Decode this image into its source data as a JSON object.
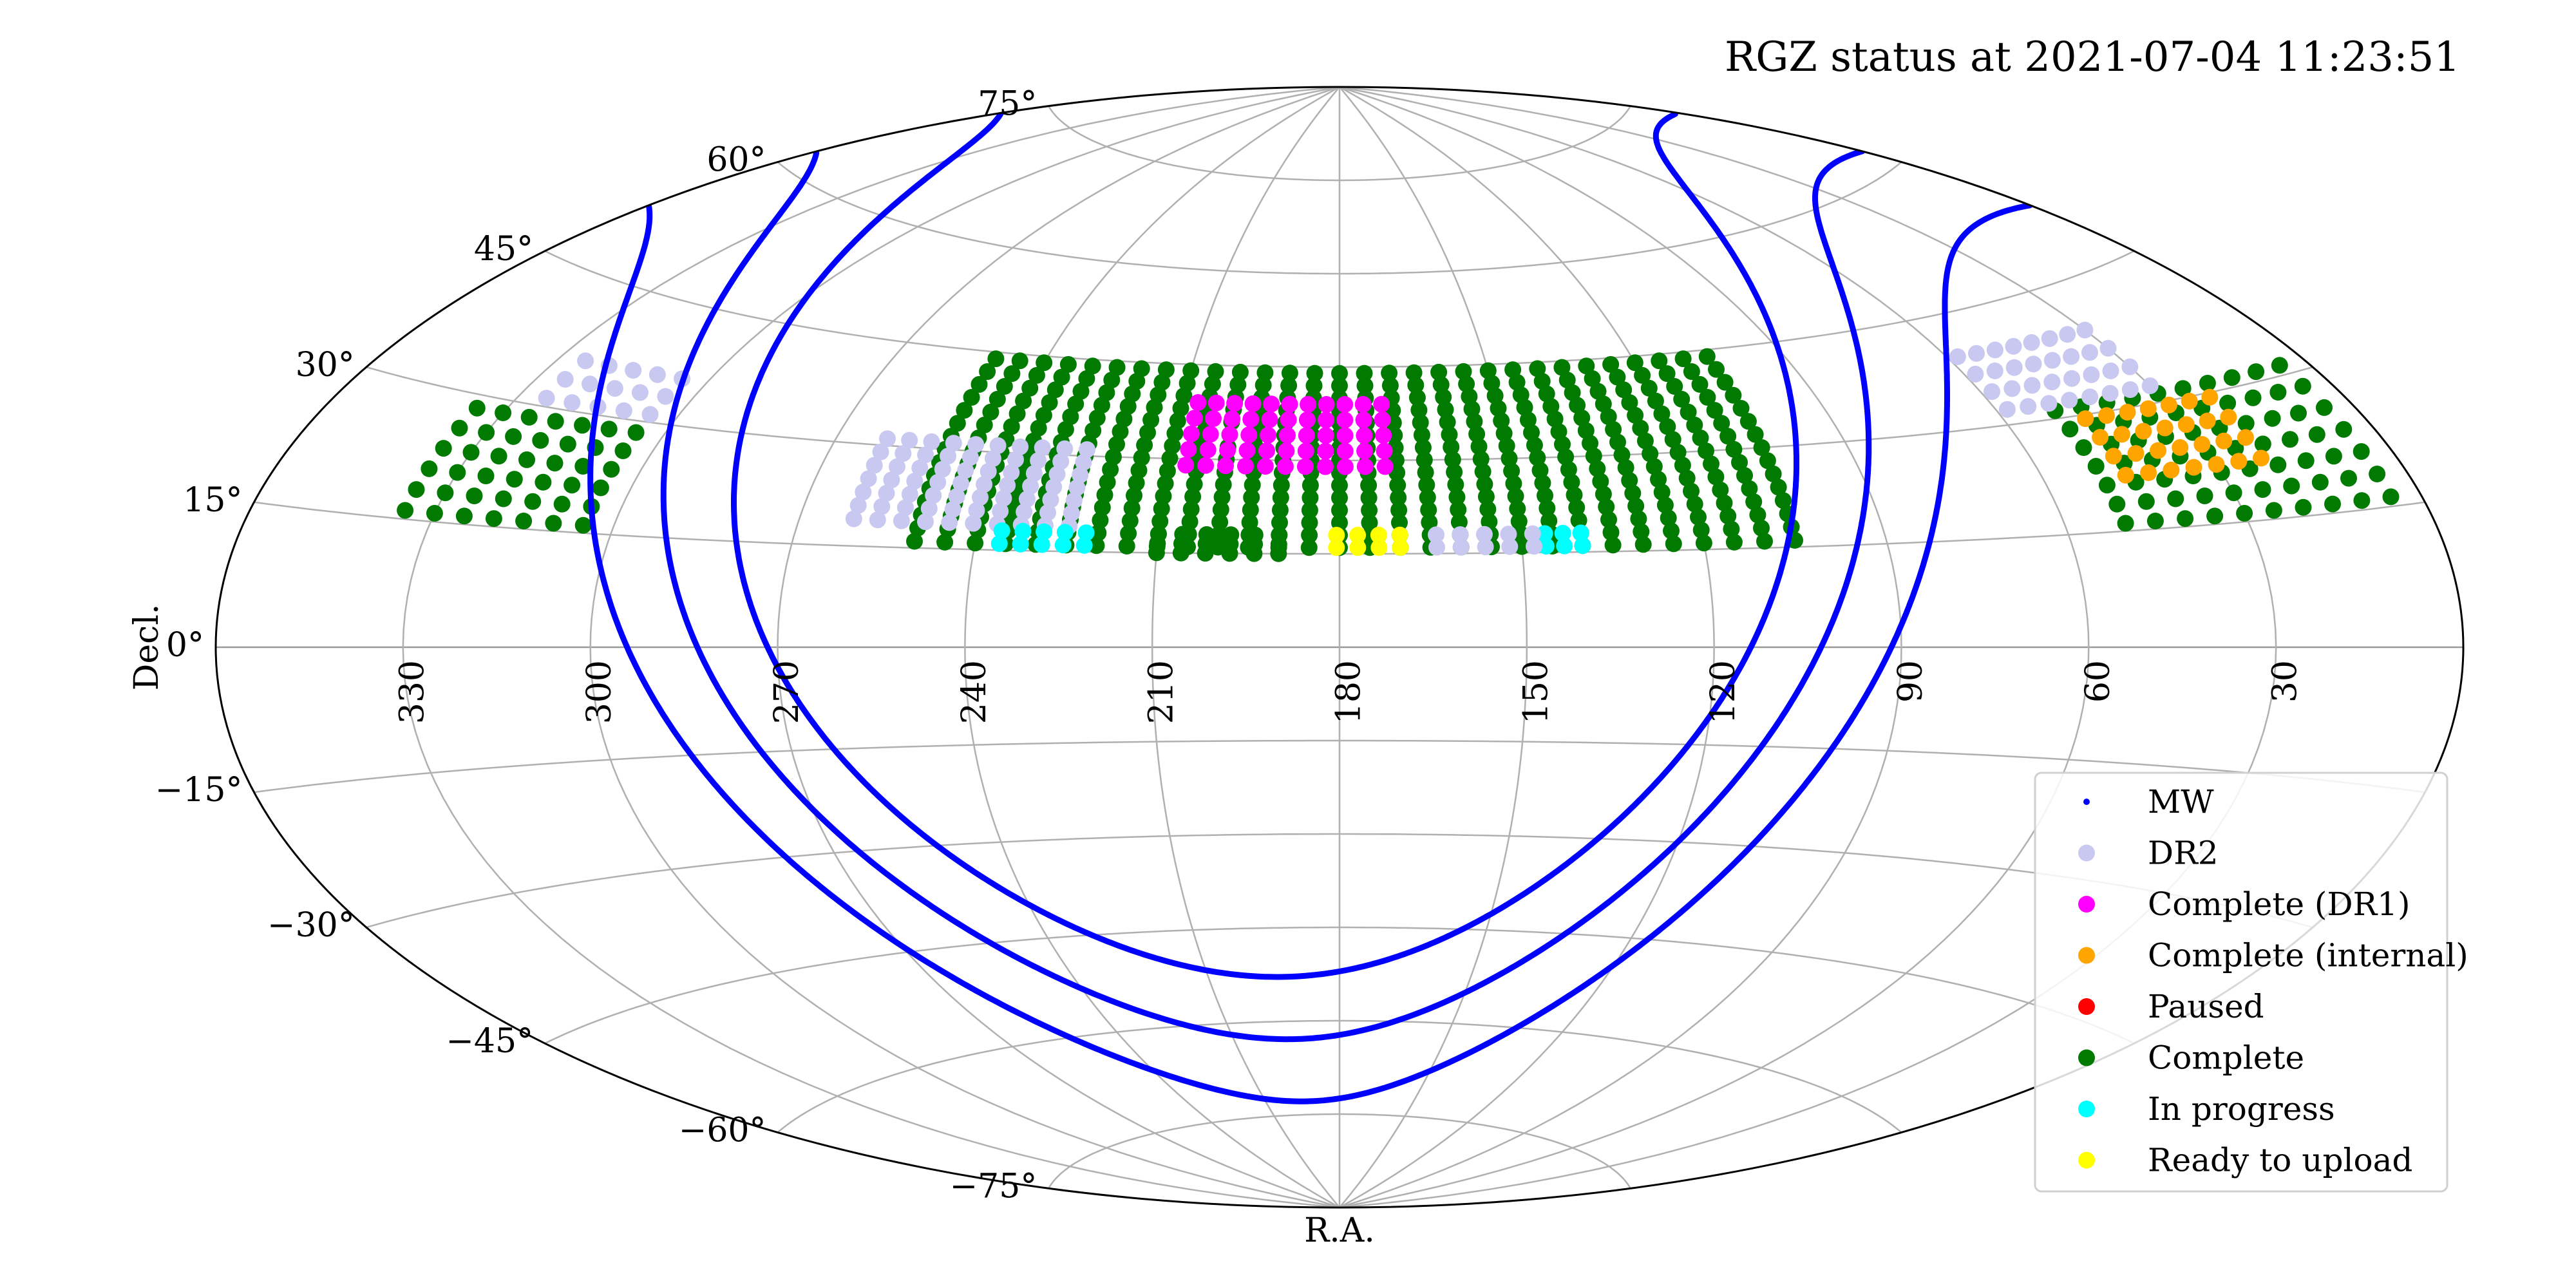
{
  "chart_data": {
    "type": "scatter",
    "projection": "aitoff",
    "title": "RGZ status at 2021-07-04 11:23:51",
    "xlabel": "R.A.",
    "ylabel": "Decl.",
    "x_ticks": [
      "330",
      "300",
      "270",
      "240",
      "210",
      "180",
      "150",
      "120",
      "90",
      "60",
      "30"
    ],
    "y_ticks": [
      "75°",
      "60°",
      "45°",
      "30°",
      "15°",
      "0°",
      "−15°",
      "−30°",
      "−45°",
      "−60°",
      "−75°"
    ],
    "grid": true,
    "legend_position": "lower-right",
    "legend": [
      {
        "name": "MW",
        "color": "#0000ff",
        "marker": "small-dot"
      },
      {
        "name": "DR2",
        "color": "#c8c8f0",
        "marker": "dot"
      },
      {
        "name": "Complete (DR1)",
        "color": "#ff00ff",
        "marker": "dot"
      },
      {
        "name": "Complete (internal)",
        "color": "#ffa500",
        "marker": "dot"
      },
      {
        "name": "Paused",
        "color": "#ff0000",
        "marker": "dot"
      },
      {
        "name": "Complete",
        "color": "#007a00",
        "marker": "dot"
      },
      {
        "name": "In progress",
        "color": "#00ffff",
        "marker": "dot"
      },
      {
        "name": "Ready to upload",
        "color": "#ffff00",
        "marker": "dot"
      }
    ],
    "mw_lines_galactic_latitude": [
      -10,
      0,
      10
    ],
    "fields": [
      {
        "status": "Complete",
        "ra_range": [
          105,
          250
        ],
        "dec_range": [
          16,
          44
        ],
        "ra_step": 5,
        "dec_step": 2
      },
      {
        "status": "Complete",
        "ra_range": [
          190,
          210
        ],
        "dec_range": [
          15,
          18
        ],
        "ra_step": 4,
        "dec_step": 1.5
      },
      {
        "status": "Complete (DR1)",
        "ra_range": [
          172,
          210
        ],
        "dec_range": [
          29,
          39
        ],
        "ra_step": 3.5,
        "dec_step": 2.5
      },
      {
        "status": "DR2",
        "ra_range": [
          225,
          262
        ],
        "dec_range": [
          19,
          31
        ],
        "ra_step": 4,
        "dec_step": 2
      },
      {
        "status": "Complete",
        "ra_range": [
          305,
          335
        ],
        "dec_range": [
          16,
          30
        ],
        "ra_step": 5,
        "dec_step": 2.5
      },
      {
        "status": "DR2",
        "ra_range": [
          305,
          325
        ],
        "dec_range": [
          31,
          36
        ],
        "ra_step": 5,
        "dec_step": 2.5
      },
      {
        "status": "Complete",
        "ra_range": [
          5,
          50
        ],
        "dec_range": [
          16,
          31
        ],
        "ra_step": 5,
        "dec_step": 2.5
      },
      {
        "status": "Complete (internal)",
        "ra_range": [
          22,
          48
        ],
        "dec_range": [
          22,
          31
        ],
        "ra_step": 4,
        "dec_step": 2.5
      },
      {
        "status": "DR2",
        "ra_range": [
          30,
          60
        ],
        "dec_range": [
          32,
          40
        ],
        "ra_step": 4,
        "dec_step": 2.5
      },
      {
        "status": "In progress",
        "ra_range": [
          222,
          238
        ],
        "dec_range": [
          16,
          18
        ],
        "ra_step": 3.5,
        "dec_step": 2
      },
      {
        "status": "In progress",
        "ra_range": [
          140,
          146
        ],
        "dec_range": [
          16,
          18
        ],
        "ra_step": 3,
        "dec_step": 2
      },
      {
        "status": "Ready to upload",
        "ra_range": [
          170,
          182
        ],
        "dec_range": [
          16,
          18
        ],
        "ra_step": 3.5,
        "dec_step": 2
      },
      {
        "status": "DR2",
        "ra_range": [
          148,
          165
        ],
        "dec_range": [
          16,
          18
        ],
        "ra_step": 4,
        "dec_step": 2
      }
    ]
  }
}
